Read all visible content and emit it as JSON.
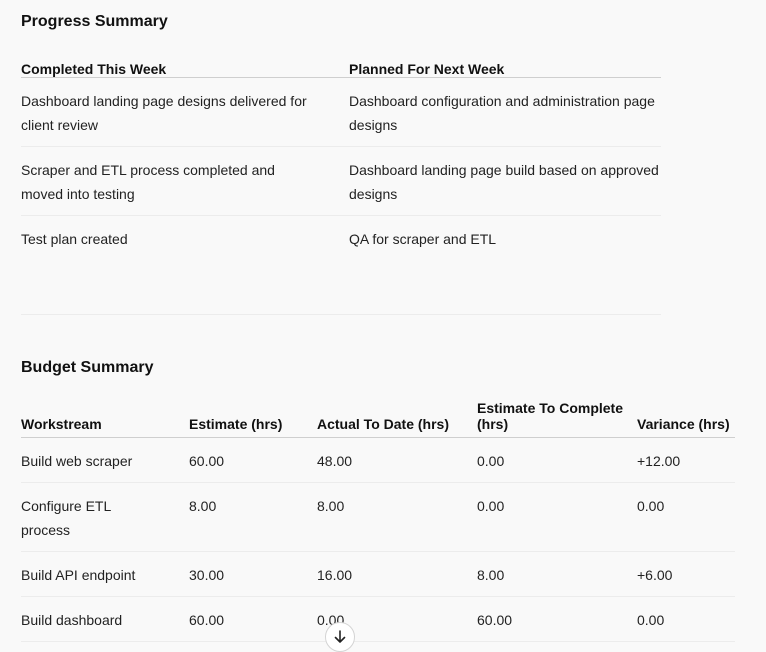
{
  "progress": {
    "title": "Progress Summary",
    "headers": [
      "Completed This Week",
      "Planned For Next Week"
    ],
    "rows": [
      [
        "Dashboard landing page designs delivered for client review",
        "Dashboard configuration and administration page designs"
      ],
      [
        "Scraper and ETL process completed and moved into testing",
        "Dashboard landing page build based on approved designs"
      ],
      [
        "Test plan created",
        "QA for scraper and ETL"
      ]
    ]
  },
  "budget": {
    "title": "Budget Summary",
    "headers": [
      "Workstream",
      "Estimate (hrs)",
      "Actual To Date (hrs)",
      "Estimate To Complete (hrs)",
      "Variance (hrs)"
    ],
    "rows": [
      [
        "Build web scraper",
        "60.00",
        "48.00",
        "0.00",
        "+12.00"
      ],
      [
        "Configure ETL process",
        "8.00",
        "8.00",
        "0.00",
        "0.00"
      ],
      [
        "Build API endpoint",
        "30.00",
        "16.00",
        "8.00",
        "+6.00"
      ],
      [
        "Build dashboard",
        "60.00",
        "0.00",
        "60.00",
        "0.00"
      ]
    ]
  },
  "icons": {
    "scroll_down": "arrow-down-icon"
  }
}
